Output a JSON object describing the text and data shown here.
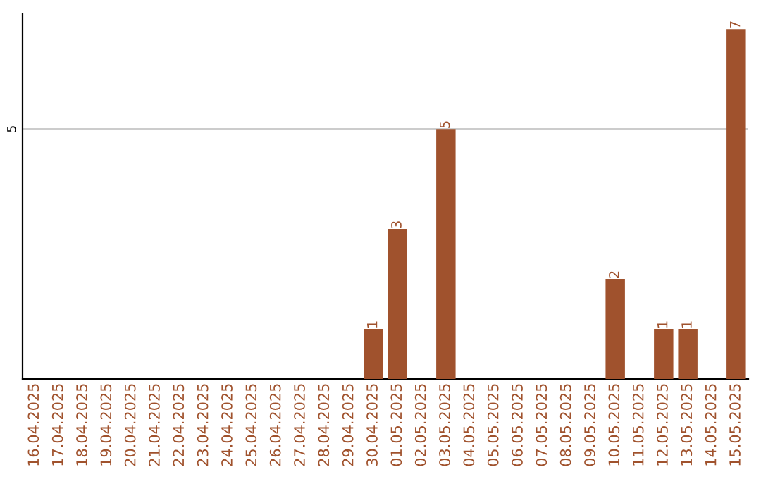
{
  "chart_data": {
    "type": "bar",
    "categories": [
      "16.04.2025",
      "17.04.2025",
      "18.04.2025",
      "19.04.2025",
      "20.04.2025",
      "21.04.2025",
      "22.04.2025",
      "23.04.2025",
      "24.04.2025",
      "25.04.2025",
      "26.04.2025",
      "27.04.2025",
      "28.04.2025",
      "29.04.2025",
      "30.04.2025",
      "01.05.2025",
      "02.05.2025",
      "03.05.2025",
      "04.05.2025",
      "05.05.2025",
      "06.05.2025",
      "07.05.2025",
      "08.05.2025",
      "09.05.2025",
      "10.05.2025",
      "11.05.2025",
      "12.05.2025",
      "13.05.2025",
      "14.05.2025",
      "15.05.2025"
    ],
    "values": [
      null,
      null,
      null,
      null,
      null,
      null,
      null,
      null,
      null,
      null,
      null,
      null,
      null,
      null,
      1,
      3,
      null,
      5,
      null,
      null,
      null,
      null,
      null,
      null,
      2,
      null,
      1,
      1,
      null,
      7
    ],
    "data_labels": true,
    "color": "#a0522d",
    "ylim": [
      0,
      7.3
    ],
    "ref_lines": [
      {
        "axis": "y",
        "value": 5,
        "label": "5",
        "color": "#cccccc"
      }
    ],
    "legend": false
  }
}
